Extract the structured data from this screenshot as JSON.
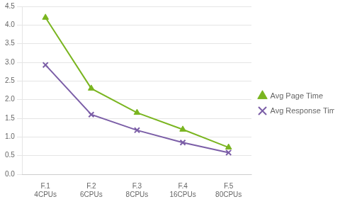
{
  "chart_data": {
    "type": "line",
    "categories": [
      "F.1\n4CPUs",
      "F.2\n6CPUs",
      "F.3\n8CPUs",
      "F.4\n16CPUs",
      "F.5\n80CPUs"
    ],
    "series": [
      {
        "name": "Avg Page Time",
        "color": "#7AB520",
        "marker": "triangle",
        "values": [
          4.2,
          2.3,
          1.65,
          1.2,
          0.72
        ]
      },
      {
        "name": "Avg Response Time",
        "color": "#7B5EA7",
        "marker": "x",
        "values": [
          2.93,
          1.6,
          1.18,
          0.85,
          0.58
        ]
      }
    ],
    "ylim": [
      0,
      4.5
    ],
    "yticks": [
      {
        "value": 0,
        "label": "0.0"
      },
      0.5,
      {
        "value": 1.0,
        "label": "1.0"
      },
      1.5,
      {
        "value": 2.0,
        "label": "2.0"
      },
      2.5,
      {
        "value": 3.0,
        "label": "3.0"
      },
      3.5,
      {
        "value": 4.0,
        "label": "4.0"
      },
      4.5
    ],
    "grid": "y",
    "legend": "right"
  }
}
